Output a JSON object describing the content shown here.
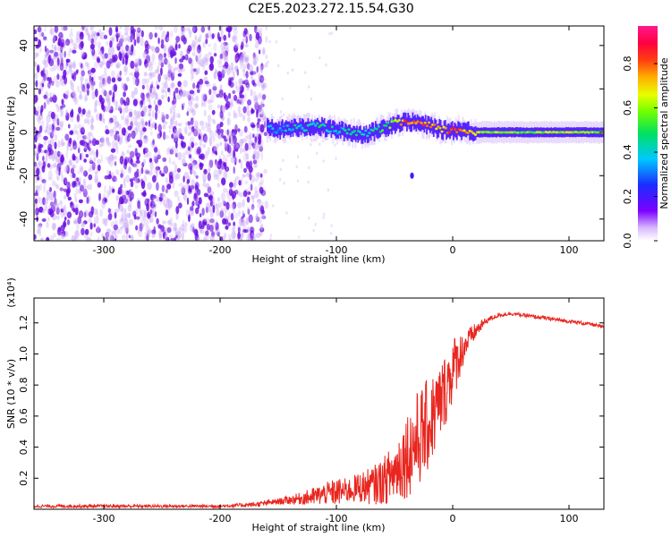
{
  "title": "C2E5.2023.272.15.54.G30",
  "colors": {
    "snr_line": "#e8261f",
    "spectrogram_noise": "#6a0ee0",
    "axis": "#000000"
  },
  "chart_data": [
    {
      "type": "heatmap",
      "name": "spectrogram",
      "xlabel": "Height of straight line (km)",
      "ylabel": "Frequency (Hz)",
      "xlim": [
        -360,
        130
      ],
      "ylim": [
        -50,
        49
      ],
      "x_ticks": [
        -300,
        -200,
        -100,
        0,
        100
      ],
      "x_tick_labels": [
        "-300",
        "-200",
        "-100",
        "0",
        "100"
      ],
      "y_ticks": [
        -40,
        -20,
        0,
        20,
        40
      ],
      "y_tick_labels": [
        "-40",
        "-20",
        "0",
        "20",
        "40"
      ],
      "colorbar": {
        "label": "Normalized spectral amplitude",
        "range": [
          0.0,
          0.97
        ],
        "ticks": [
          0.0,
          0.2,
          0.4,
          0.6,
          0.8
        ],
        "tick_labels": [
          "0.0",
          "0.2",
          "0.4",
          "0.6",
          "0.8"
        ],
        "colormap": "rainbow"
      },
      "regions": {
        "noise_x_range": [
          -360,
          -160
        ],
        "noise_amplitude": 0.15,
        "carrier_x_range": [
          -160,
          130
        ]
      },
      "carrier_track": {
        "x": [
          -160,
          -150,
          -140,
          -130,
          -120,
          -110,
          -100,
          -90,
          -80,
          -70,
          -60,
          -50,
          -40,
          -30,
          -20,
          -10,
          0,
          10,
          20,
          40,
          60,
          80,
          100,
          120,
          130
        ],
        "freq": [
          2,
          1,
          2,
          2,
          3,
          2,
          1,
          0,
          -1,
          0,
          2,
          4,
          5,
          4,
          3,
          1,
          1,
          1,
          0,
          0,
          0,
          0,
          0,
          0,
          0
        ],
        "amplitude": [
          0.3,
          0.35,
          0.4,
          0.42,
          0.45,
          0.45,
          0.4,
          0.4,
          0.42,
          0.45,
          0.5,
          0.6,
          0.85,
          0.8,
          0.82,
          0.7,
          0.9,
          0.75,
          0.65,
          0.6,
          0.58,
          0.6,
          0.66,
          0.6,
          0.58
        ]
      },
      "features": [
        {
          "x": -35,
          "freq": -20,
          "amplitude": 0.2
        }
      ]
    },
    {
      "type": "line",
      "name": "snr",
      "xlabel": "Height of straight line (km)",
      "ylabel": "SNR (10 * v/v)",
      "y_multiplier": "(x10⁴)",
      "xlim": [
        -360,
        130
      ],
      "ylim": [
        0,
        1.36
      ],
      "x_ticks": [
        -300,
        -200,
        -100,
        0,
        100
      ],
      "x_tick_labels": [
        "-300",
        "-200",
        "-100",
        "0",
        "100"
      ],
      "y_ticks": [
        0.2,
        0.4,
        0.6,
        0.8,
        1.0,
        1.2
      ],
      "y_tick_labels": [
        "0.2",
        "0.4",
        "0.6",
        "0.8",
        "1.0",
        "1.2"
      ],
      "series": [
        {
          "color": "#e8261f",
          "x": [
            -360,
            -300,
            -250,
            -200,
            -170,
            -150,
            -130,
            -120,
            -110,
            -100,
            -90,
            -80,
            -70,
            -60,
            -50,
            -40,
            -30,
            -20,
            -10,
            0,
            10,
            20,
            30,
            40,
            50,
            60,
            80,
            100,
            120,
            130
          ],
          "y": [
            0.02,
            0.02,
            0.02,
            0.02,
            0.03,
            0.05,
            0.07,
            0.08,
            0.1,
            0.11,
            0.12,
            0.14,
            0.15,
            0.18,
            0.24,
            0.35,
            0.45,
            0.55,
            0.7,
            0.9,
            1.05,
            1.15,
            1.22,
            1.25,
            1.26,
            1.25,
            1.23,
            1.21,
            1.19,
            1.17
          ],
          "noise_amplitude": [
            0.01,
            0.01,
            0.01,
            0.01,
            0.015,
            0.02,
            0.04,
            0.06,
            0.07,
            0.09,
            0.08,
            0.1,
            0.12,
            0.15,
            0.2,
            0.28,
            0.32,
            0.3,
            0.25,
            0.22,
            0.1,
            0.05,
            0.02,
            0.012,
            0.012,
            0.012,
            0.012,
            0.012,
            0.012,
            0.012
          ]
        }
      ]
    }
  ]
}
